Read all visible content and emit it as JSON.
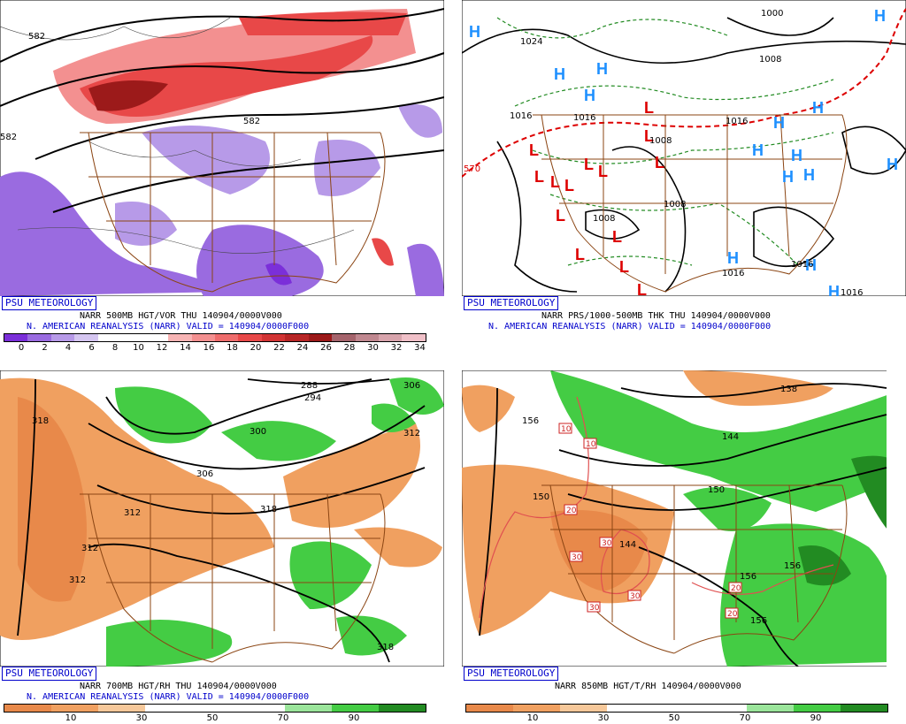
{
  "panels": {
    "p1": {
      "badge": "PSU METEOROLOGY",
      "line1": "NARR 500MB HGT/VOR THU  140904/0000V000",
      "line2": "N. AMERICAN REANALYSIS (NARR) VALID = 140904/0000F000",
      "ticks": [
        "0",
        "2",
        "4",
        "6",
        "8",
        "10",
        "12",
        "14",
        "16",
        "18",
        "20",
        "22",
        "24",
        "26",
        "28",
        "30",
        "32",
        "34"
      ],
      "contour_labels": [
        "582",
        "582",
        "582"
      ],
      "colors": [
        "#7b2fd9",
        "#9a6be0",
        "#b79ae8",
        "#d5c6f1",
        "#ffffff",
        "#ffffff",
        "#ffffff",
        "#f7b4b4",
        "#f39090",
        "#ee6c6c",
        "#e84848",
        "#d23434",
        "#b82626",
        "#9c1a1a",
        "#a5646c",
        "#c08890",
        "#d8a4ac",
        "#f0c0c8"
      ]
    },
    "p2": {
      "badge": "PSU METEOROLOGY",
      "line1": "NARR PRS/1000-500MB THK THU  140904/0000V000",
      "line2": "N. AMERICAN REANALYSIS (NARR) VALID = 140904/0000F000",
      "labels": [
        "1024",
        "1016",
        "1016",
        "1016",
        "1000",
        "1008",
        "1008",
        "1008",
        "1008",
        "1016",
        "1016",
        "1016",
        "570"
      ]
    },
    "p3": {
      "badge": "PSU METEOROLOGY",
      "line1": "NARR 700MB HGT/RH THU  140904/0000V000",
      "line2": "N. AMERICAN REANALYSIS (NARR) VALID = 140904/0000F000",
      "ticks": [
        "10",
        "30",
        "50",
        "70",
        "90"
      ],
      "contour_labels": [
        "318",
        "288",
        "294",
        "306",
        "312",
        "300",
        "306",
        "312",
        "318",
        "312",
        "312",
        "318"
      ]
    },
    "p4": {
      "badge": "PSU METEOROLOGY",
      "line1": "NARR 850MB HGT/T/RH 140904/0000V000",
      "ticks": [
        "10",
        "30",
        "50",
        "70",
        "90"
      ],
      "contour_labels": [
        "156",
        "138",
        "144",
        "150",
        "150",
        "144",
        "156",
        "156",
        "156"
      ],
      "temp_labels": [
        "10",
        "10",
        "20",
        "30",
        "30",
        "30",
        "30",
        "20",
        "20"
      ]
    }
  }
}
